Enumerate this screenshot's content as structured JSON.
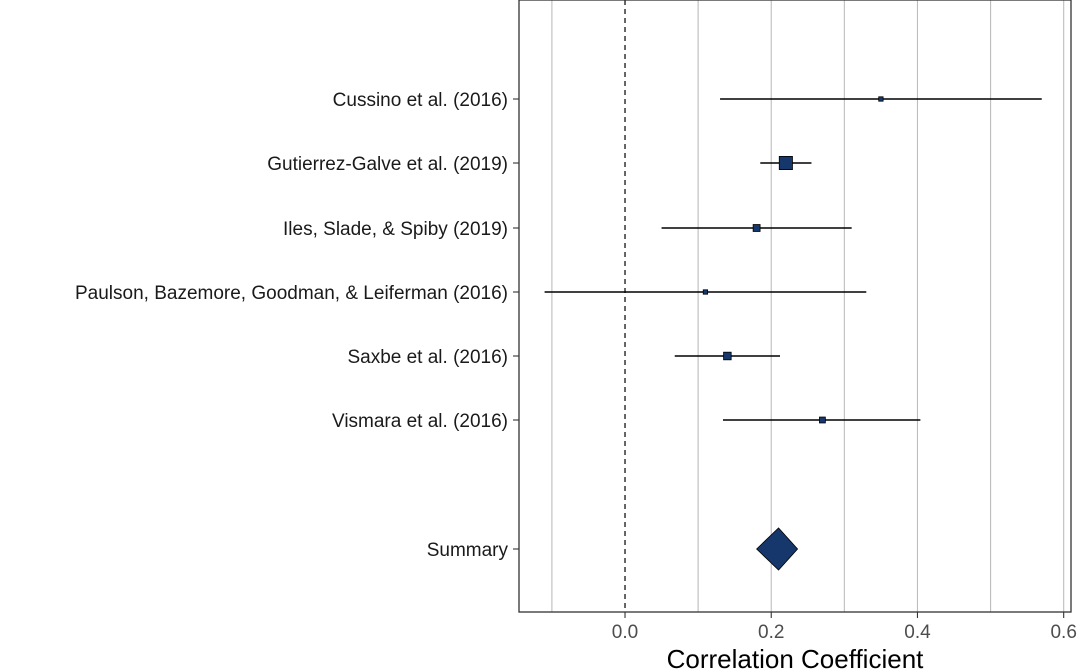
{
  "chart_data": {
    "type": "forest",
    "xlabel": "Correlation Coefficient",
    "xlim": [
      -0.145,
      0.61
    ],
    "x_ticks": [
      {
        "value": 0.0,
        "label": "0.0"
      },
      {
        "value": 0.2,
        "label": "0.2"
      },
      {
        "value": 0.4,
        "label": "0.4"
      },
      {
        "value": 0.6,
        "label": "0.6"
      }
    ],
    "minor_gridlines": [
      -0.1,
      0.1,
      0.3,
      0.5
    ],
    "reference_line": 0.0,
    "grid": true,
    "studies": [
      {
        "label": "Cussino et al. (2016)",
        "estimate": 0.35,
        "lower": 0.13,
        "upper": 0.57,
        "weight": 1.0
      },
      {
        "label": "Gutierrez-Galve et al. (2019)",
        "estimate": 0.22,
        "lower": 0.185,
        "upper": 0.255,
        "weight": 9.0
      },
      {
        "label": "Iles, Slade, & Spiby (2019)",
        "estimate": 0.18,
        "lower": 0.05,
        "upper": 0.31,
        "weight": 2.5
      },
      {
        "label": "Paulson, Bazemore, Goodman, & Leiferman (2016)",
        "estimate": 0.11,
        "lower": -0.11,
        "upper": 0.33,
        "weight": 1.0
      },
      {
        "label": "Saxbe et al. (2016)",
        "estimate": 0.14,
        "lower": 0.068,
        "upper": 0.212,
        "weight": 3.0
      },
      {
        "label": "Vismara et al. (2016)",
        "estimate": 0.27,
        "lower": 0.134,
        "upper": 0.404,
        "weight": 1.8
      }
    ],
    "summary": {
      "label": "Summary",
      "estimate": 0.21,
      "lower": 0.18,
      "upper": 0.236
    },
    "colors": {
      "marker": "#16376b",
      "line": "#000000",
      "grid": "#bdbdbd"
    }
  }
}
